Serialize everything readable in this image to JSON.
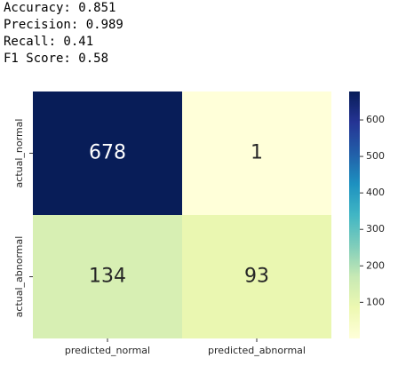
{
  "output_lines": [
    "Accuracy: 0.851",
    "Precision: 0.989",
    "Recall: 0.41",
    "F1 Score: 0.58"
  ],
  "chart_data": {
    "type": "heatmap",
    "x_categories": [
      "predicted_normal",
      "predicted_abnormal"
    ],
    "y_categories": [
      "actual_normal",
      "actual_abnormal"
    ],
    "values": [
      [
        678,
        1
      ],
      [
        134,
        93
      ]
    ],
    "colormap": [
      "#ffffd9",
      "#edf8b1",
      "#c7e9b4",
      "#7fcdbb",
      "#41b6c4",
      "#1d91c0",
      "#225ea8",
      "#253494",
      "#081d58"
    ],
    "clim": [
      1,
      678
    ],
    "cticks": [
      100,
      200,
      300,
      400,
      500,
      600
    ]
  }
}
